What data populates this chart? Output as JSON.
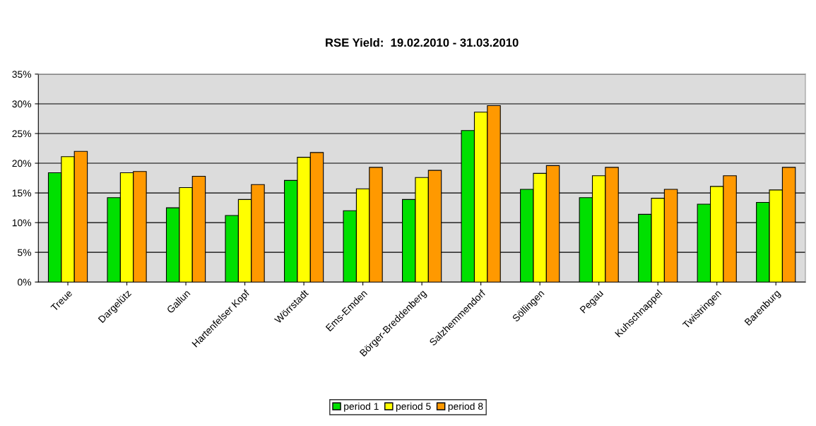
{
  "chart_data": {
    "type": "bar",
    "title": "RSE Yield:  19.02.2010 - 31.03.2010",
    "categories": [
      "Treue",
      "Dargelütz",
      "Gallun",
      "Hartenfelser Kopf",
      "Wörrstadt",
      "Ems-Emden",
      "Börger-Breddenberg",
      "Salzhemmendorf",
      "Söllingen",
      "Pegau",
      "Kuhschnappel",
      "Twistringen",
      "Barenburg"
    ],
    "series": [
      {
        "name": "period 1",
        "color": "#00e000",
        "values": [
          18.4,
          14.2,
          12.5,
          11.2,
          17.1,
          12.0,
          13.9,
          25.5,
          15.6,
          14.2,
          11.4,
          13.1,
          13.4
        ]
      },
      {
        "name": "period 5",
        "color": "#ffff00",
        "values": [
          21.1,
          18.4,
          15.9,
          13.9,
          21.0,
          15.7,
          17.6,
          28.6,
          18.3,
          17.9,
          14.1,
          16.1,
          15.5
        ]
      },
      {
        "name": "period 8",
        "color": "#ff9900",
        "values": [
          22.0,
          18.6,
          17.8,
          16.4,
          21.8,
          19.3,
          18.8,
          29.7,
          19.6,
          19.3,
          15.6,
          17.9,
          19.3
        ]
      }
    ],
    "ylim": [
      0,
      35
    ],
    "yticks": [
      {
        "value": 0,
        "label": "0%"
      },
      {
        "value": 5,
        "label": "5%"
      },
      {
        "value": 10,
        "label": "10%"
      },
      {
        "value": 15,
        "label": "15%"
      },
      {
        "value": 20,
        "label": "20%"
      },
      {
        "value": 25,
        "label": "25%"
      },
      {
        "value": 30,
        "label": "30%"
      },
      {
        "value": 35,
        "label": "35%"
      }
    ],
    "grid": "y",
    "legend": "bottom"
  }
}
